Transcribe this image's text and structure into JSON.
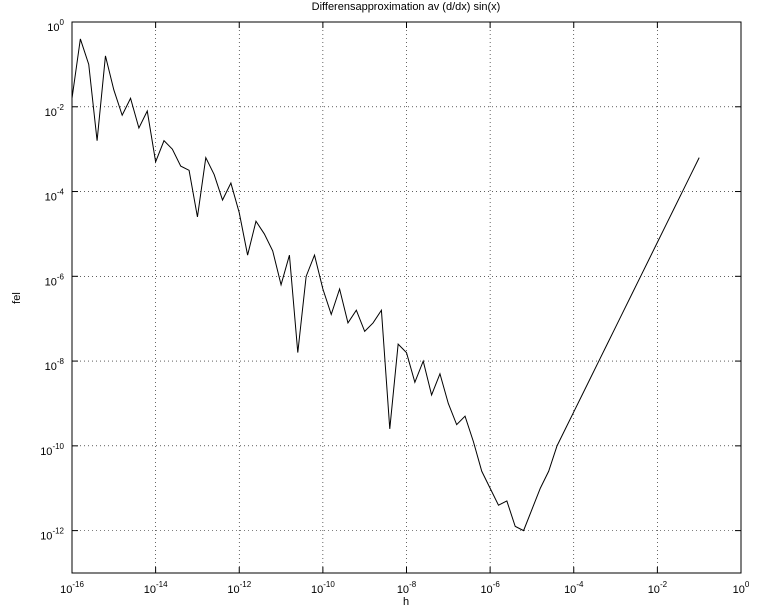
{
  "chart_data": {
    "type": "line",
    "title": "Differensapproximation av (d/dx) sin(x)",
    "xlabel": "h",
    "ylabel": "fel",
    "xscale": "log",
    "yscale": "log",
    "grid": true,
    "color": "#000000",
    "xlim": [
      1e-16,
      1
    ],
    "ylim": [
      1e-13,
      1
    ],
    "xticks": [
      {
        "value": 1e-16,
        "label": "10^-16"
      },
      {
        "value": 1e-14,
        "label": "10^-14"
      },
      {
        "value": 1e-12,
        "label": "10^-12"
      },
      {
        "value": 1e-10,
        "label": "10^-10"
      },
      {
        "value": 1e-08,
        "label": "10^-8"
      },
      {
        "value": 1e-06,
        "label": "10^-6"
      },
      {
        "value": 0.0001,
        "label": "10^-4"
      },
      {
        "value": 0.01,
        "label": "10^-2"
      },
      {
        "value": 1,
        "label": "10^0"
      }
    ],
    "yticks": [
      {
        "value": 1e-12,
        "label": "10^-12"
      },
      {
        "value": 1e-10,
        "label": "10^-10"
      },
      {
        "value": 1e-08,
        "label": "10^-8"
      },
      {
        "value": 1e-06,
        "label": "10^-6"
      },
      {
        "value": 0.0001,
        "label": "10^-4"
      },
      {
        "value": 0.01,
        "label": "10^-2"
      },
      {
        "value": 1,
        "label": "10^0"
      }
    ],
    "x": [
      1e-16,
      1.585e-16,
      2.512e-16,
      3.981e-16,
      6.31e-16,
      1e-15,
      1.585e-15,
      2.512e-15,
      3.981e-15,
      6.31e-15,
      1e-14,
      1.585e-14,
      2.512e-14,
      3.981e-14,
      6.31e-14,
      1e-13,
      1.585e-13,
      2.512e-13,
      3.981e-13,
      6.31e-13,
      1e-12,
      1.585e-12,
      2.512e-12,
      3.981e-12,
      6.31e-12,
      1e-11,
      1.585e-11,
      2.512e-11,
      3.981e-11,
      6.31e-11,
      1e-10,
      1.585e-10,
      2.512e-10,
      3.981e-10,
      6.31e-10,
      1e-09,
      1.585e-09,
      2.512e-09,
      3.981e-09,
      6.31e-09,
      1e-08,
      1.585e-08,
      2.512e-08,
      3.981e-08,
      6.31e-08,
      1e-07,
      1.585e-07,
      2.512e-07,
      3.981e-07,
      6.31e-07,
      1e-06,
      1.585e-06,
      2.512e-06,
      3.981e-06,
      6.31e-06,
      1e-05,
      1.585e-05,
      2.512e-05,
      3.981e-05,
      6.31e-05,
      0.0001,
      0.0001585,
      0.0002512,
      0.0003981,
      0.000631,
      0.001,
      0.001585,
      0.002512,
      0.003981,
      0.00631,
      0.01,
      0.01585,
      0.02512,
      0.03981,
      0.0631,
      0.1
    ],
    "values": [
      0.01585,
      0.3981,
      0.1,
      0.001585,
      0.1585,
      0.02512,
      0.00631,
      0.01585,
      0.003162,
      0.007943,
      0.0005012,
      0.001585,
      0.001,
      0.0003981,
      0.0003162,
      2.512e-05,
      0.000631,
      0.0002512,
      6.31e-05,
      0.0001585,
      3.162e-05,
      3.162e-06,
      1.995e-05,
      1e-05,
      3.981e-06,
      6.31e-07,
      3.162e-06,
      1.585e-08,
      1e-06,
      3.162e-06,
      5.012e-07,
      1.259e-07,
      5.012e-07,
      7.943e-08,
      1.585e-07,
      5.012e-08,
      7.943e-08,
      1.585e-07,
      2.512e-10,
      2.512e-08,
      1.585e-08,
      3.162e-09,
      1e-08,
      1.585e-09,
      5.012e-09,
      1e-09,
      3.162e-10,
      5.012e-10,
      1.259e-10,
      2.512e-11,
      1e-11,
      3.981e-12,
      5.012e-12,
      1.259e-12,
      1e-12,
      3.162e-12,
      1e-11,
      2.512e-11,
      1e-10,
      2.512e-10,
      6.31e-10,
      1.585e-09,
      3.981e-09,
      1e-08,
      2.512e-08,
      6.31e-08,
      1.585e-07,
      3.981e-07,
      1e-06,
      2.512e-06,
      6.31e-06,
      1.585e-05,
      3.981e-05,
      0.0001,
      0.0002512,
      0.000631
    ]
  }
}
